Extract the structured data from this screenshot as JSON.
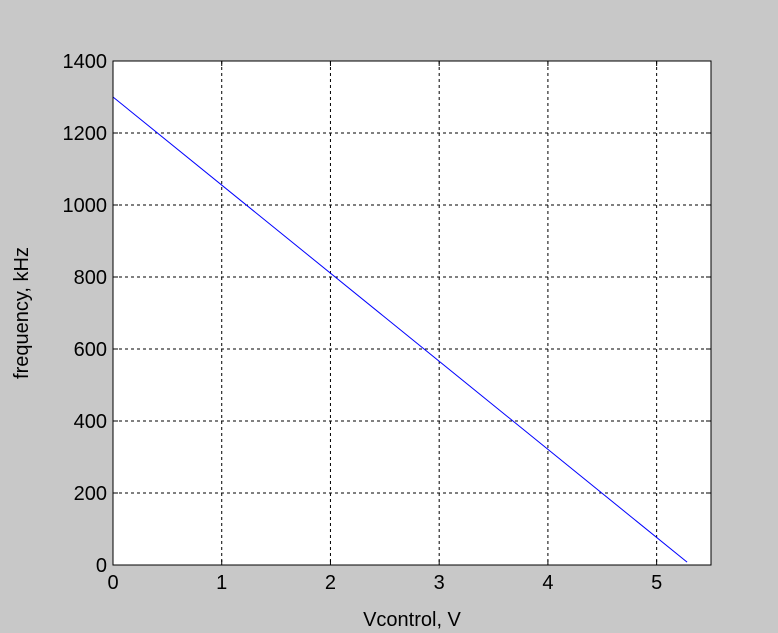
{
  "chart_data": {
    "type": "line",
    "title": "",
    "xlabel": "Vcontrol, V",
    "ylabel": "frequency, kHz",
    "xlim": [
      0,
      5.5
    ],
    "ylim": [
      0,
      1400
    ],
    "xticks": [
      "0",
      "1",
      "2",
      "3",
      "4",
      "5"
    ],
    "yticks": [
      "0",
      "200",
      "400",
      "600",
      "800",
      "1000",
      "1200",
      "1400"
    ],
    "grid": true,
    "series": [
      {
        "color": "#0000ff",
        "x": [
          0,
          5.28
        ],
        "y": [
          1300,
          8
        ]
      }
    ]
  },
  "colors": {
    "figure_bg": "#c8c8c8",
    "axes_bg": "#ffffff",
    "line": "#0000ff",
    "grid": "#000000"
  }
}
